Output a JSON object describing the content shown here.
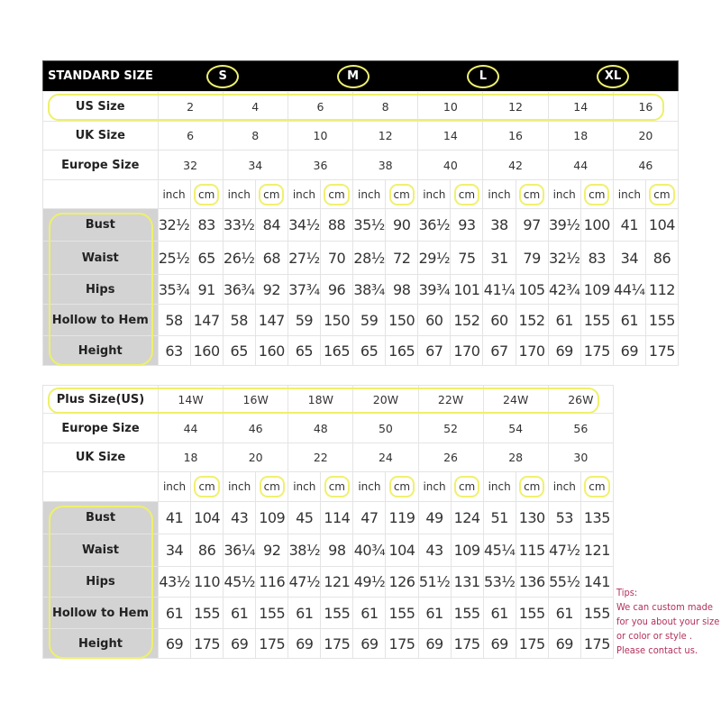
{
  "standard": {
    "title": "STANDARD SIZE",
    "groups": [
      "S",
      "M",
      "L",
      "XL"
    ],
    "rows": [
      {
        "label": "US Size",
        "values": [
          "2",
          "4",
          "6",
          "8",
          "10",
          "12",
          "14",
          "16"
        ]
      },
      {
        "label": "UK Size",
        "values": [
          "6",
          "8",
          "10",
          "12",
          "14",
          "16",
          "18",
          "20"
        ]
      },
      {
        "label": "Europe Size",
        "values": [
          "32",
          "34",
          "36",
          "38",
          "40",
          "42",
          "44",
          "46"
        ]
      }
    ],
    "units": [
      "inch",
      "cm"
    ],
    "measurements": [
      {
        "label": "Bust",
        "values": [
          "32½",
          "83",
          "33½",
          "84",
          "34½",
          "88",
          "35½",
          "90",
          "36½",
          "93",
          "38",
          "97",
          "39½",
          "100",
          "41",
          "104"
        ]
      },
      {
        "label": "Waist",
        "values": [
          "25½",
          "65",
          "26½",
          "68",
          "27½",
          "70",
          "28½",
          "72",
          "29½",
          "75",
          "31",
          "79",
          "32½",
          "83",
          "34",
          "86"
        ]
      },
      {
        "label": "Hips",
        "values": [
          "35¾",
          "91",
          "36¾",
          "92",
          "37¾",
          "96",
          "38¾",
          "98",
          "39¾",
          "101",
          "41¼",
          "105",
          "42¾",
          "109",
          "44¼",
          "112"
        ]
      },
      {
        "label": "Hollow to Hem",
        "values": [
          "58",
          "147",
          "58",
          "147",
          "59",
          "150",
          "59",
          "150",
          "60",
          "152",
          "60",
          "152",
          "61",
          "155",
          "61",
          "155"
        ]
      },
      {
        "label": "Height",
        "values": [
          "63",
          "160",
          "65",
          "160",
          "65",
          "165",
          "65",
          "165",
          "67",
          "170",
          "67",
          "170",
          "69",
          "175",
          "69",
          "175"
        ]
      }
    ]
  },
  "plus": {
    "rows": [
      {
        "label": "Plus Size(US)",
        "values": [
          "14W",
          "16W",
          "18W",
          "20W",
          "22W",
          "24W",
          "26W"
        ]
      },
      {
        "label": "Europe Size",
        "values": [
          "44",
          "46",
          "48",
          "50",
          "52",
          "54",
          "56"
        ]
      },
      {
        "label": "UK Size",
        "values": [
          "18",
          "20",
          "22",
          "24",
          "26",
          "28",
          "30"
        ]
      }
    ],
    "units": [
      "inch",
      "cm"
    ],
    "measurements": [
      {
        "label": "Bust",
        "values": [
          "41",
          "104",
          "43",
          "109",
          "45",
          "114",
          "47",
          "119",
          "49",
          "124",
          "51",
          "130",
          "53",
          "135"
        ]
      },
      {
        "label": "Waist",
        "values": [
          "34",
          "86",
          "36¼",
          "92",
          "38½",
          "98",
          "40¾",
          "104",
          "43",
          "109",
          "45¼",
          "115",
          "47½",
          "121"
        ]
      },
      {
        "label": "Hips",
        "values": [
          "43½",
          "110",
          "45½",
          "116",
          "47½",
          "121",
          "49½",
          "126",
          "51½",
          "131",
          "53½",
          "136",
          "55½",
          "141"
        ]
      },
      {
        "label": "Hollow to Hem",
        "values": [
          "61",
          "155",
          "61",
          "155",
          "61",
          "155",
          "61",
          "155",
          "61",
          "155",
          "61",
          "155",
          "61",
          "155"
        ]
      },
      {
        "label": "Height",
        "values": [
          "69",
          "175",
          "69",
          "175",
          "69",
          "175",
          "69",
          "175",
          "69",
          "175",
          "69",
          "175",
          "69",
          "175"
        ]
      }
    ]
  },
  "tips": {
    "title": "Tips:",
    "lines": [
      "We can custom made",
      "for you about your size",
      "or color or style .",
      "Please contact us."
    ]
  },
  "colors": {
    "highlight": "#f0f070",
    "header_bg": "#000000",
    "label_bg": "#d3d3d3",
    "tips": "#b5305a"
  }
}
